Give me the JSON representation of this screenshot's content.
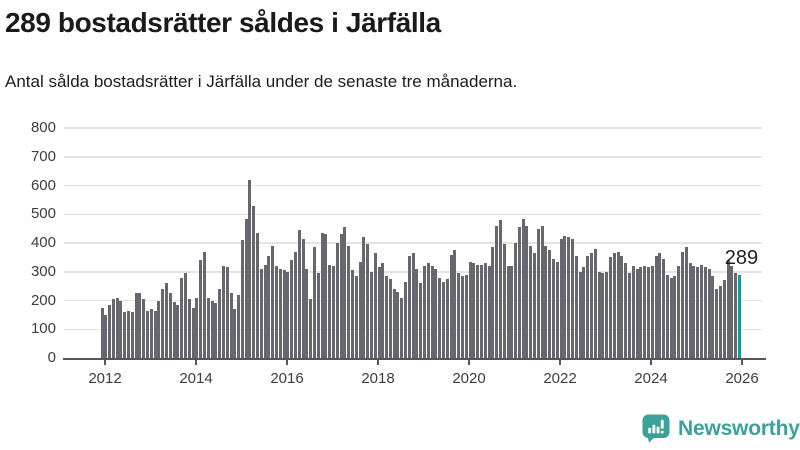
{
  "header": {
    "title": "289 bostadsrätter såldes i Järfälla",
    "subtitle": "Antal sålda bostadsrätter i Järfälla under de senaste tre månaderna."
  },
  "chart_data": {
    "type": "bar",
    "title": "289 bostadsrätter såldes i Järfälla",
    "subtitle": "Antal sålda bostadsrätter i Järfälla under de senaste tre månaderna.",
    "unit": "antal sålda bostadsrätter (rullande 3 månader)",
    "frequency": "monthly",
    "x_range": [
      "2012-01",
      "2026-01"
    ],
    "values": [
      175,
      150,
      185,
      205,
      210,
      200,
      160,
      165,
      160,
      225,
      225,
      205,
      165,
      170,
      165,
      200,
      240,
      260,
      225,
      195,
      185,
      280,
      295,
      205,
      175,
      210,
      340,
      370,
      210,
      200,
      190,
      240,
      320,
      315,
      225,
      170,
      220,
      410,
      485,
      620,
      530,
      435,
      310,
      325,
      355,
      390,
      320,
      310,
      305,
      300,
      340,
      370,
      445,
      415,
      310,
      205,
      385,
      295,
      435,
      430,
      325,
      320,
      400,
      430,
      455,
      390,
      305,
      285,
      335,
      420,
      395,
      300,
      365,
      315,
      330,
      285,
      275,
      240,
      230,
      210,
      265,
      355,
      365,
      310,
      260,
      320,
      330,
      320,
      310,
      280,
      265,
      275,
      360,
      375,
      295,
      285,
      290,
      335,
      330,
      325,
      325,
      330,
      320,
      385,
      460,
      480,
      395,
      320,
      320,
      400,
      455,
      485,
      460,
      390,
      365,
      450,
      460,
      390,
      375,
      345,
      335,
      415,
      425,
      420,
      415,
      355,
      300,
      315,
      355,
      365,
      380,
      300,
      295,
      300,
      350,
      365,
      370,
      355,
      330,
      295,
      320,
      310,
      315,
      320,
      315,
      320,
      355,
      365,
      345,
      290,
      280,
      285,
      320,
      370,
      385,
      330,
      320,
      315,
      325,
      315,
      310,
      285,
      240,
      250,
      270,
      340,
      320,
      295,
      289
    ],
    "last_value": 289,
    "last_value_label": "289",
    "highlight_last": true,
    "y_ticks": [
      0,
      100,
      200,
      300,
      400,
      500,
      600,
      700,
      800
    ],
    "ylim": [
      0,
      800
    ],
    "x_tick_labels": [
      "2012",
      "2014",
      "2016",
      "2018",
      "2020",
      "2022",
      "2024",
      "2026"
    ],
    "grid": true,
    "legend": "none",
    "bar_color": "#67676f",
    "highlight_color": "#00a3a3",
    "axis_color": "#55555a",
    "grid_color": "#e4e4e4",
    "label_color": "#3d3d3d"
  },
  "footer": {
    "brand": "Newsworthy",
    "brand_color": "#3ba29a"
  }
}
